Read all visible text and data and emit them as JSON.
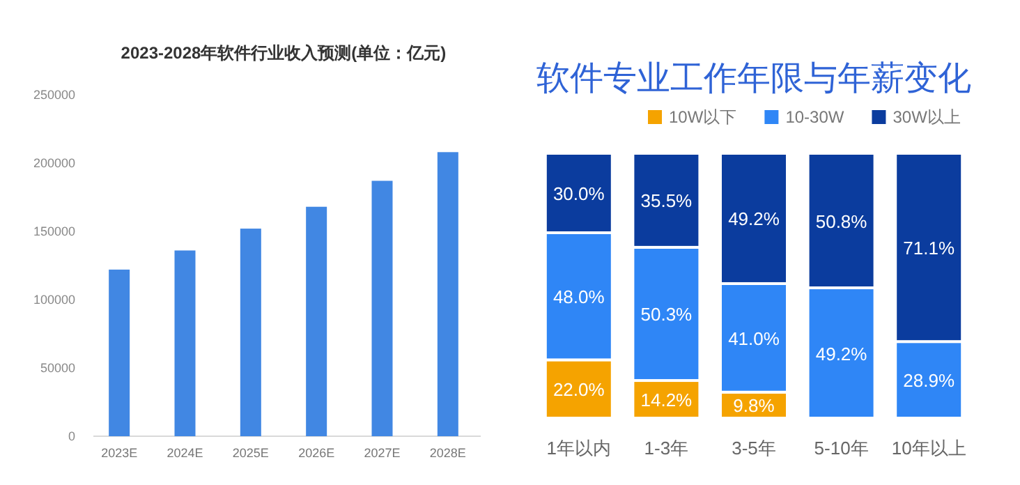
{
  "chart_data": [
    {
      "type": "bar",
      "title": "2023-2028年软件行业收入预测(单位：亿元)",
      "categories": [
        "2023E",
        "2024E",
        "2025E",
        "2026E",
        "2027E",
        "2028E"
      ],
      "series": [
        {
          "color": "#4187e3",
          "values": [
            122000,
            136000,
            152000,
            168000,
            187000,
            208000
          ]
        }
      ],
      "ylim": [
        0,
        250000
      ],
      "yticks": [
        0,
        50000,
        100000,
        150000,
        200000,
        250000
      ],
      "grid": false,
      "legend": false
    },
    {
      "type": "bar",
      "title": "软件专业工作年限与年薪变化",
      "categories": [
        "1年以内",
        "1-3年",
        "3-5年",
        "5-10年",
        "10年以上"
      ],
      "stacked": true,
      "legend": "top",
      "series": [
        {
          "name": "10W以下",
          "color": "#f5a300",
          "values": [
            22.0,
            14.2,
            9.8,
            null,
            null
          ],
          "value_labels": [
            "22.0%",
            "14.2%",
            "9.8%",
            null,
            null
          ]
        },
        {
          "name": "10-30W",
          "color": "#2f86f6",
          "values": [
            48.0,
            50.3,
            41.0,
            49.2,
            28.9
          ],
          "value_labels": [
            "48.0%",
            "50.3%",
            "41.0%",
            "49.2%",
            "28.9%"
          ]
        },
        {
          "name": "30W以上",
          "color": "#0b3c9e",
          "values": [
            30.0,
            35.5,
            49.2,
            50.8,
            71.1
          ],
          "value_labels": [
            "30.0%",
            "35.5%",
            "49.2%",
            "50.8%",
            "71.1%"
          ]
        }
      ]
    }
  ]
}
